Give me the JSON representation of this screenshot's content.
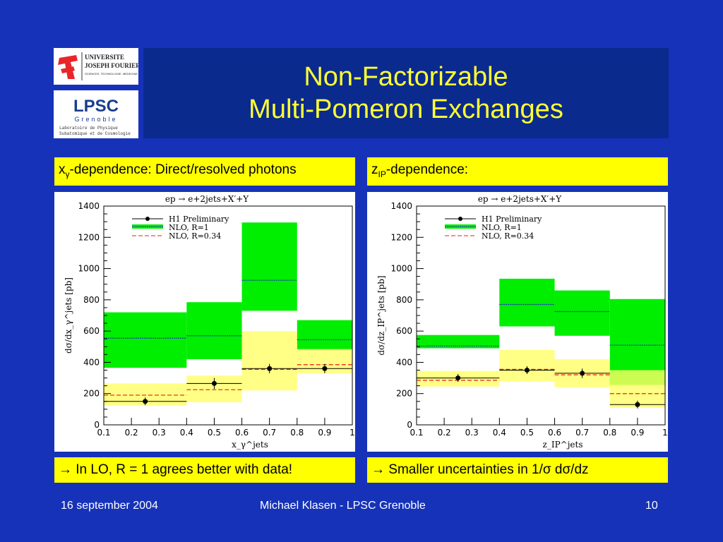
{
  "slide": {
    "title_line1": "Non-Factorizable",
    "title_line2": "Multi-Pomeron Exchanges",
    "left_caption": {
      "pre": "x",
      "sub": "γ",
      "post": "-dependence: Direct/resolved photons"
    },
    "right_caption": {
      "pre": "z",
      "sub": "IP",
      "post": "-dependence:"
    },
    "left_conclusion": "→ In LO, R = 1 agrees better with data!",
    "right_conclusion": "→ Smaller uncertainties in 1/σ dσ/dz",
    "footer_date": "16 september 2004",
    "footer_author": "Michael Klasen - LPSC Grenoble",
    "footer_page": "10",
    "logo_ujf_lines": [
      "UNIVERSITE",
      "JOSEPH FOURIER",
      "SCIENCES. TECHNOLOGIE. MEDECINE"
    ],
    "logo_lpsc_lines": [
      "LPSC",
      "Grenoble",
      "Laboratoire de Physique",
      "Subatomique et de Cosmologie"
    ]
  },
  "colors": {
    "background": "#1632b8",
    "title_box": "#0b2a8e",
    "title_text": "#ffff33",
    "caption_bg": "#ffff00",
    "nlo_r1": "#00ee00",
    "nlo_r034": "#ffff66"
  },
  "chart_data": [
    {
      "type": "bar",
      "title": "ep → e+2jets+X′+Y",
      "xlabel": "x_γ^jets",
      "ylabel": "dσ/dx_γ^jets [pb]",
      "xlim": [
        0.1,
        1
      ],
      "ylim": [
        0,
        1400
      ],
      "xticks": [
        "0.1",
        "0.2",
        "0.3",
        "0.4",
        "0.5",
        "0.6",
        "0.7",
        "0.8",
        "0.9",
        "1"
      ],
      "yticks": [
        "0",
        "200",
        "400",
        "600",
        "800",
        "1000",
        "1200",
        "1400"
      ],
      "bins": [
        [
          0.1,
          0.4
        ],
        [
          0.4,
          0.6
        ],
        [
          0.6,
          0.8
        ],
        [
          0.8,
          1.0
        ]
      ],
      "legend": [
        "H1 Preliminary",
        "NLO, R=1",
        "NLO, R=0.34"
      ],
      "legend_position": "top-left",
      "series": [
        {
          "name": "H1 Preliminary",
          "x": [
            0.25,
            0.5,
            0.7,
            0.9
          ],
          "values": [
            150,
            265,
            360,
            360
          ],
          "err": [
            25,
            35,
            30,
            30
          ]
        },
        {
          "name": "NLO, R=1",
          "values": [
            555,
            570,
            925,
            545
          ],
          "low": [
            365,
            420,
            730,
            480
          ],
          "high": [
            720,
            785,
            1295,
            670
          ]
        },
        {
          "name": "NLO, R=0.34",
          "values": [
            190,
            225,
            355,
            385
          ],
          "low": [
            125,
            145,
            220,
            330
          ],
          "high": [
            265,
            315,
            600,
            485
          ]
        }
      ]
    },
    {
      "type": "bar",
      "title": "ep → e+2jets+X′+Y",
      "xlabel": "z_IP^jets",
      "ylabel": "dσ/dz_IP^jets [pb]",
      "xlim": [
        0.1,
        1
      ],
      "ylim": [
        0,
        1400
      ],
      "xticks": [
        "0.1",
        "0.2",
        "0.3",
        "0.4",
        "0.5",
        "0.6",
        "0.7",
        "0.8",
        "0.9",
        "1"
      ],
      "yticks": [
        "0",
        "200",
        "400",
        "600",
        "800",
        "1000",
        "1200",
        "1400"
      ],
      "bins": [
        [
          0.1,
          0.4
        ],
        [
          0.4,
          0.6
        ],
        [
          0.6,
          0.8
        ],
        [
          0.8,
          1.0
        ]
      ],
      "legend": [
        "H1 Preliminary",
        "NLO, R=1",
        "NLO, R=0.34"
      ],
      "legend_position": "top-left",
      "series": [
        {
          "name": "H1 Preliminary",
          "x": [
            0.25,
            0.5,
            0.7,
            0.9
          ],
          "values": [
            300,
            350,
            330,
            130
          ],
          "err": [
            25,
            25,
            30,
            25
          ]
        },
        {
          "name": "NLO, R=1",
          "values": [
            505,
            770,
            725,
            510
          ],
          "low": [
            490,
            630,
            570,
            255
          ],
          "high": [
            575,
            935,
            860,
            805
          ]
        },
        {
          "name": "NLO, R=0.34",
          "values": [
            285,
            355,
            320,
            200
          ],
          "low": [
            245,
            280,
            240,
            110
          ],
          "high": [
            345,
            480,
            420,
            350
          ]
        }
      ]
    }
  ]
}
